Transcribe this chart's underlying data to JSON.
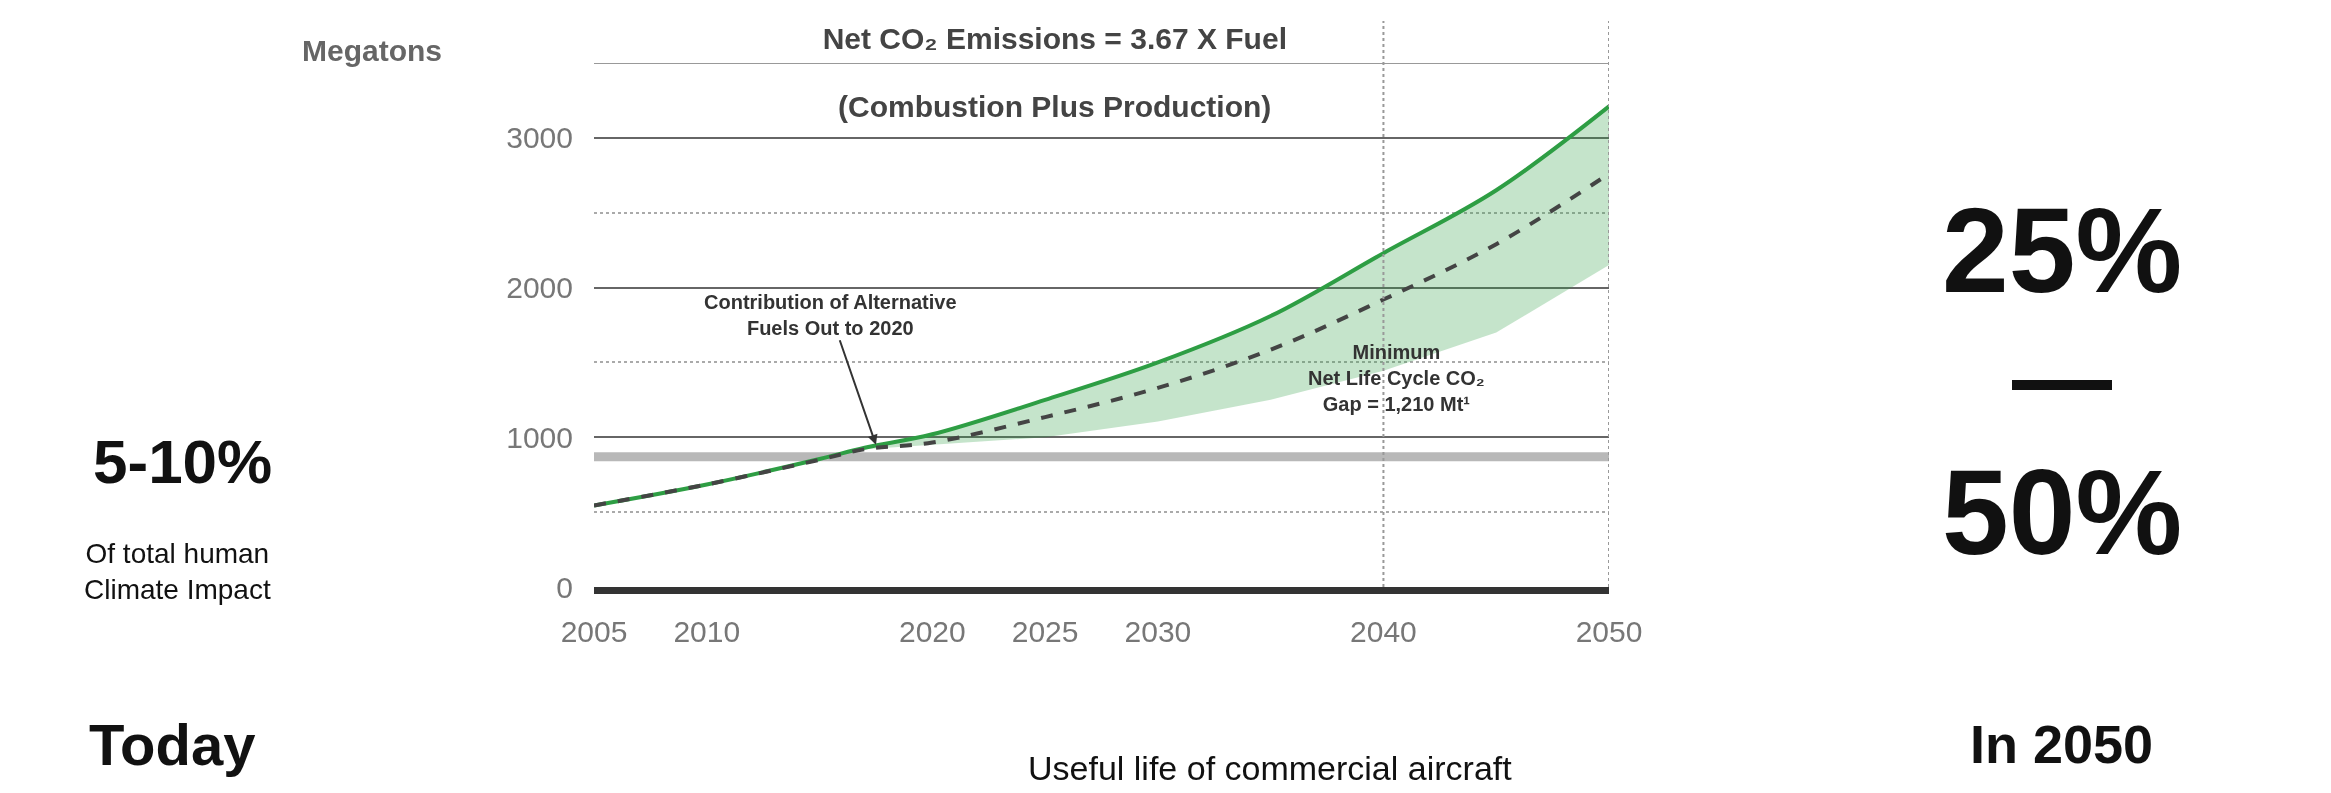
{
  "chart_data": {
    "type": "line",
    "title": "Net CO₂ Emissions = 3.67 X Fuel",
    "subtitle": "(Combustion Plus Production)",
    "ylabel": "Megatons",
    "x": [
      2005,
      2010,
      2015,
      2017,
      2020,
      2025,
      2030,
      2035,
      2040,
      2045,
      2050
    ],
    "series": [
      {
        "color": "#2e9e44",
        "line_style": "solid",
        "values": [
          545,
          685,
          855,
          930,
          1020,
          1250,
          1500,
          1810,
          2230,
          2650,
          3210
        ]
      },
      {
        "color": "#444444",
        "line_style": "dashed",
        "values": [
          545,
          685,
          850,
          920,
          965,
          1135,
          1330,
          1585,
          1920,
          2290,
          2760
        ],
        "lower": [
          null,
          null,
          null,
          920,
          950,
          1000,
          1105,
          1250,
          1445,
          1700,
          2150
        ],
        "upper": [
          null,
          null,
          null,
          930,
          1020,
          1250,
          1500,
          1810,
          2230,
          2650,
          3210
        ]
      }
    ],
    "xlim": [
      2005,
      2050
    ],
    "xticks": [
      2005,
      2010,
      2020,
      2025,
      2030,
      2040,
      2050
    ],
    "ylim": [
      0,
      3500
    ],
    "yticks": [
      0,
      1000,
      2000,
      3000
    ],
    "grid": "y",
    "marker": "none",
    "ref_lines": [
      {
        "axis": "x",
        "value": 2040,
        "color": "#999999",
        "line_style": "dotted"
      },
      {
        "axis": "x",
        "value": 2050,
        "color": "#999999",
        "line_style": "dotted"
      }
    ],
    "bands": [
      {
        "axis": "y",
        "from": 840,
        "to": 900,
        "color": "#b8b8b8",
        "label": "Minimum\nNet Life Cycle CO₂\nGap = 1,210 Mt¹"
      }
    ],
    "annotations": [
      {
        "text": "Contribution of Alternative\nFuels Out to 2020",
        "x": 2017.5,
        "y": 950
      },
      "5-10%",
      "Of total human\nClimate Impact",
      "Today",
      "25%",
      "—",
      "50%",
      "In 2050",
      "Useful life of commercial aircraft"
    ]
  }
}
